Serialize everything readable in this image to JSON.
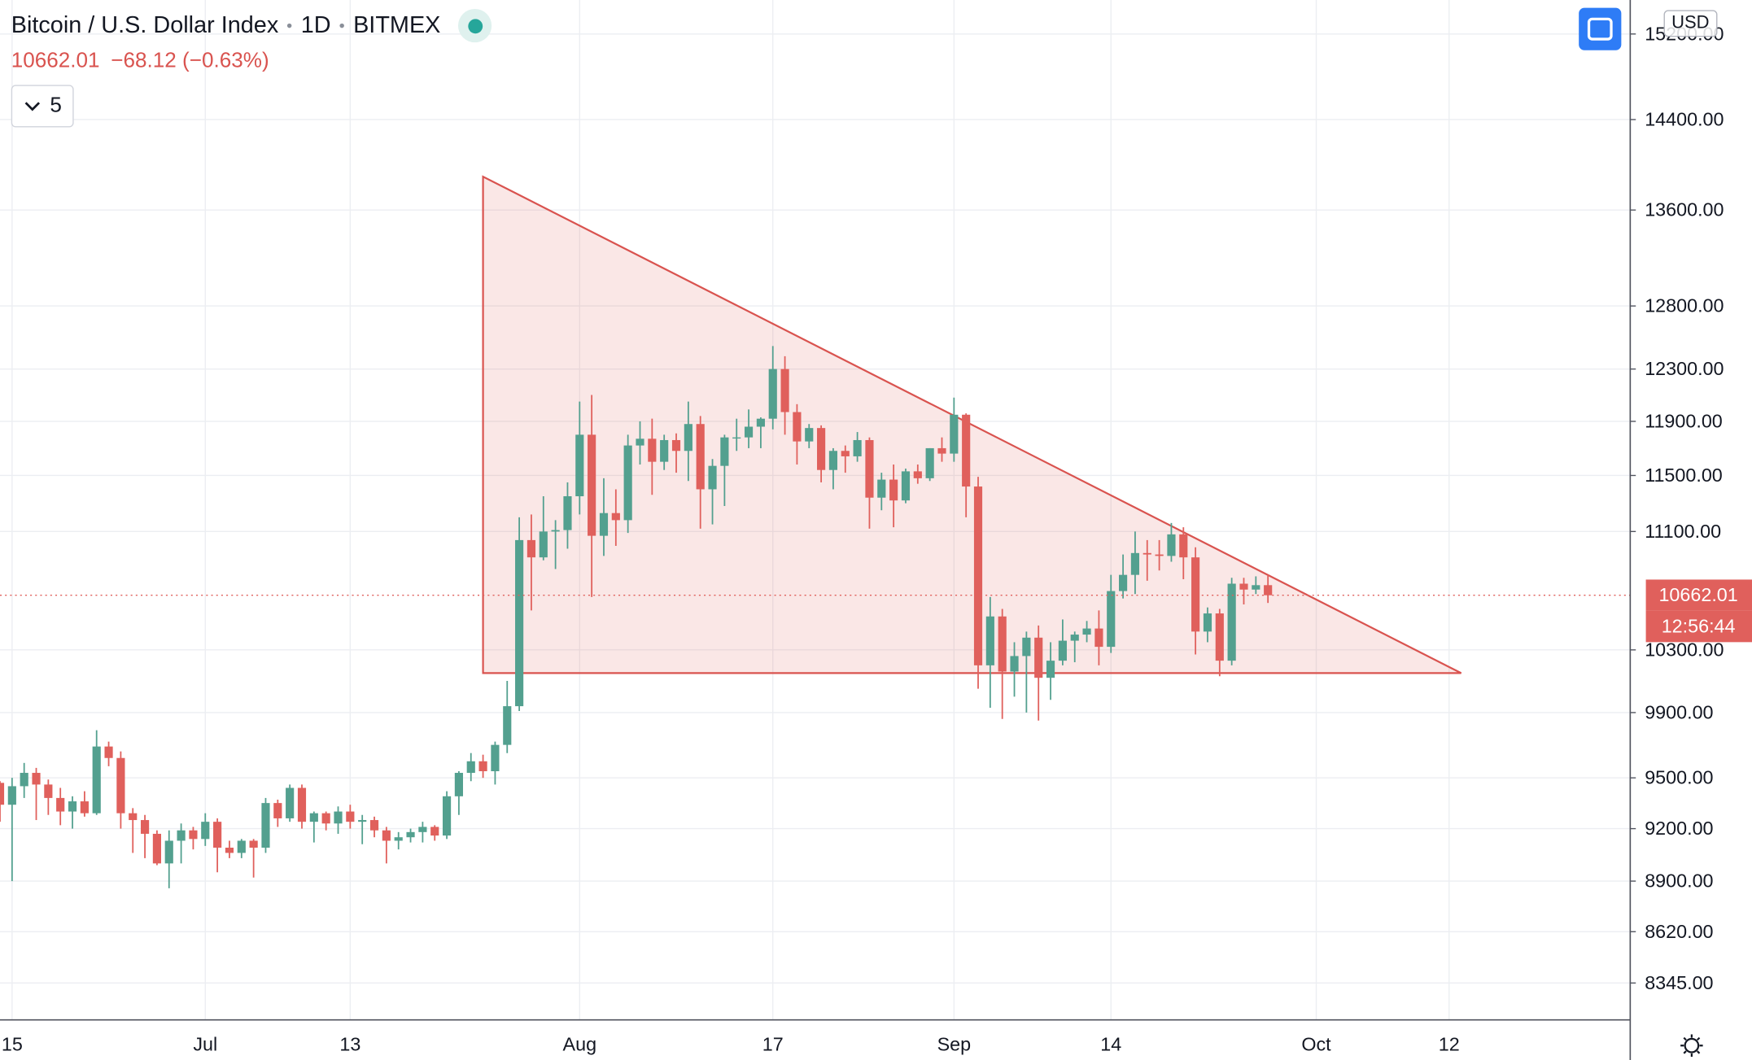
{
  "header": {
    "symbol": "Bitcoin / U.S. Dollar Index",
    "interval": "1D",
    "exchange": "BITMEX",
    "change": "−68.12 (−0.63%)",
    "indicators": "5",
    "currency": "USD"
  },
  "chart_data": {
    "type": "candlestick",
    "up_color": "#53a08f",
    "down_color": "#e0605c",
    "log_scale": true,
    "grid": true,
    "last_price": 10662.01,
    "countdown": "12:56:44",
    "categories": [
      "Jun 14",
      "Jun 15",
      "Jun 16",
      "Jun 17",
      "Jun 18",
      "Jun 19",
      "Jun 20",
      "Jun 21",
      "Jun 22",
      "Jun 23",
      "Jun 24",
      "Jun 25",
      "Jun 26",
      "Jun 27",
      "Jun 28",
      "Jun 29",
      "Jun 30",
      "Jul 1",
      "Jul 2",
      "Jul 3",
      "Jul 4",
      "Jul 5",
      "Jul 6",
      "Jul 7",
      "Jul 8",
      "Jul 9",
      "Jul 10",
      "Jul 11",
      "Jul 12",
      "Jul 13",
      "Jul 14",
      "Jul 15",
      "Jul 16",
      "Jul 17",
      "Jul 18",
      "Jul 19",
      "Jul 20",
      "Jul 21",
      "Jul 22",
      "Jul 23",
      "Jul 24",
      "Jul 25",
      "Jul 26",
      "Jul 27",
      "Jul 28",
      "Jul 29",
      "Jul 30",
      "Jul 31",
      "Aug 1",
      "Aug 2",
      "Aug 3",
      "Aug 4",
      "Aug 5",
      "Aug 6",
      "Aug 7",
      "Aug 8",
      "Aug 9",
      "Aug 10",
      "Aug 11",
      "Aug 12",
      "Aug 13",
      "Aug 14",
      "Aug 15",
      "Aug 16",
      "Aug 17",
      "Aug 18",
      "Aug 19",
      "Aug 20",
      "Aug 21",
      "Aug 22",
      "Aug 23",
      "Aug 24",
      "Aug 25",
      "Aug 26",
      "Aug 27",
      "Aug 28",
      "Aug 29",
      "Aug 30",
      "Aug 31",
      "Sep 1",
      "Sep 2",
      "Sep 3",
      "Sep 4",
      "Sep 5",
      "Sep 6",
      "Sep 7",
      "Sep 8",
      "Sep 9",
      "Sep 10",
      "Sep 11",
      "Sep 12",
      "Sep 13",
      "Sep 14",
      "Sep 15",
      "Sep 16",
      "Sep 17",
      "Sep 18",
      "Sep 19",
      "Sep 20",
      "Sep 21",
      "Sep 22",
      "Sep 23",
      "Sep 24",
      "Sep 25",
      "Sep 26",
      "Sep 27"
    ],
    "open": [
      9470,
      9340,
      9450,
      9530,
      9460,
      9380,
      9300,
      9360,
      9290,
      9690,
      9620,
      9290,
      9250,
      9170,
      9000,
      9130,
      9190,
      9140,
      9240,
      9090,
      9060,
      9130,
      9090,
      9350,
      9260,
      9440,
      9240,
      9290,
      9230,
      9300,
      9240,
      9250,
      9190,
      9130,
      9150,
      9180,
      9210,
      9160,
      9390,
      9530,
      9600,
      9540,
      9700,
      9940,
      11040,
      10920,
      11100,
      11110,
      11350,
      11800,
      11070,
      11230,
      11180,
      11720,
      11770,
      11600,
      11760,
      11680,
      11880,
      11400,
      11570,
      11780,
      11780,
      11860,
      11920,
      12300,
      11970,
      11750,
      11850,
      11540,
      11680,
      11640,
      11760,
      11340,
      11470,
      11320,
      11530,
      11480,
      11700,
      11660,
      11950,
      11420,
      10200,
      10520,
      10160,
      10260,
      10380,
      10120,
      10230,
      10360,
      10400,
      10440,
      10320,
      10690,
      10800,
      10950,
      10940,
      10930,
      11080,
      10920,
      10420,
      10540,
      10230,
      10740,
      10700,
      10730
    ],
    "high": [
      9480,
      9500,
      9590,
      9560,
      9490,
      9440,
      9390,
      9420,
      9790,
      9720,
      9660,
      9320,
      9280,
      9190,
      9190,
      9230,
      9210,
      9290,
      9260,
      9130,
      9140,
      9140,
      9380,
      9370,
      9460,
      9460,
      9300,
      9300,
      9330,
      9340,
      9280,
      9270,
      9210,
      9180,
      9200,
      9240,
      9220,
      9420,
      9540,
      9650,
      9640,
      9720,
      10100,
      11200,
      11220,
      11350,
      11180,
      11450,
      12050,
      12100,
      11480,
      11400,
      11800,
      11900,
      11920,
      11800,
      11810,
      12050,
      11940,
      11620,
      11800,
      11920,
      11990,
      11930,
      12480,
      12400,
      12030,
      11880,
      11870,
      11700,
      11720,
      11820,
      11780,
      11520,
      11580,
      11550,
      11580,
      11700,
      11780,
      12080,
      11960,
      11490,
      10650,
      10570,
      10350,
      10420,
      10460,
      10350,
      10500,
      10420,
      10490,
      10560,
      10800,
      10940,
      11100,
      11040,
      11040,
      11160,
      11130,
      10990,
      10580,
      10570,
      10780,
      10780,
      10790,
      10800
    ],
    "low": [
      9240,
      8900,
      9380,
      9250,
      9280,
      9220,
      9200,
      9270,
      9280,
      9570,
      9200,
      9060,
      9030,
      8990,
      8860,
      9000,
      9080,
      9100,
      8950,
      9030,
      9030,
      8920,
      9060,
      9210,
      9240,
      9200,
      9120,
      9190,
      9170,
      9200,
      9110,
      9150,
      9000,
      9080,
      9120,
      9120,
      9130,
      9140,
      9280,
      9480,
      9500,
      9460,
      9650,
      9910,
      10560,
      10900,
      10840,
      10980,
      11220,
      10650,
      10930,
      11000,
      11090,
      11580,
      11360,
      11540,
      11520,
      11460,
      11120,
      11150,
      11280,
      11680,
      11700,
      11700,
      11840,
      11800,
      11580,
      11700,
      11450,
      11400,
      11520,
      11600,
      11120,
      11250,
      11130,
      11300,
      11440,
      11460,
      11600,
      11600,
      11200,
      10050,
      9930,
      9860,
      10000,
      9900,
      9850,
      9980,
      10200,
      10220,
      10350,
      10200,
      10280,
      10640,
      10670,
      10760,
      10830,
      10890,
      10770,
      10270,
      10350,
      10130,
      10200,
      10600,
      10670,
      10610
    ],
    "close": [
      9340,
      9450,
      9530,
      9460,
      9380,
      9300,
      9360,
      9290,
      9690,
      9620,
      9290,
      9250,
      9170,
      9000,
      9130,
      9190,
      9140,
      9240,
      9090,
      9060,
      9130,
      9090,
      9350,
      9260,
      9440,
      9240,
      9290,
      9230,
      9300,
      9240,
      9250,
      9190,
      9130,
      9150,
      9180,
      9210,
      9160,
      9390,
      9530,
      9600,
      9540,
      9700,
      9940,
      11040,
      10920,
      11100,
      11110,
      11350,
      11800,
      11070,
      11230,
      11180,
      11720,
      11770,
      11600,
      11760,
      11680,
      11880,
      11400,
      11570,
      11780,
      11780,
      11860,
      11920,
      12300,
      11970,
      11750,
      11850,
      11540,
      11680,
      11640,
      11760,
      11340,
      11470,
      11320,
      11530,
      11480,
      11700,
      11660,
      11950,
      11420,
      10200,
      10520,
      10160,
      10260,
      10380,
      10120,
      10230,
      10360,
      10400,
      10440,
      10320,
      10690,
      10800,
      10950,
      10940,
      10930,
      11080,
      10920,
      10420,
      10540,
      10230,
      10740,
      10700,
      10730,
      10662.01
    ],
    "ylim": [
      8153,
      15530
    ],
    "yticks": [
      {
        "value": 8345,
        "label": "8345.00"
      },
      {
        "value": 8620,
        "label": "8620.00"
      },
      {
        "value": 8900,
        "label": "8900.00"
      },
      {
        "value": 9200,
        "label": "9200.00"
      },
      {
        "value": 9500,
        "label": "9500.00"
      },
      {
        "value": 9900,
        "label": "9900.00"
      },
      {
        "value": 10300,
        "label": "10300.00"
      },
      {
        "value": 11100,
        "label": "11100.00"
      },
      {
        "value": 11500,
        "label": "11500.00"
      },
      {
        "value": 11900,
        "label": "11900.00"
      },
      {
        "value": 12300,
        "label": "12300.00"
      },
      {
        "value": 12800,
        "label": "12800.00"
      },
      {
        "value": 13600,
        "label": "13600.00"
      },
      {
        "value": 14400,
        "label": "14400.00"
      },
      {
        "value": 15200,
        "label": "15200.00"
      }
    ],
    "xlim": [
      "Jun 14",
      "Oct 27"
    ],
    "xticks": [
      {
        "value": "Jun 15",
        "label": "15"
      },
      {
        "value": "Jul 1",
        "label": "Jul"
      },
      {
        "value": "Jul 13",
        "label": "13"
      },
      {
        "value": "Aug 1",
        "label": "Aug"
      },
      {
        "value": "Aug 17",
        "label": "17"
      },
      {
        "value": "Sep 1",
        "label": "Sep"
      },
      {
        "value": "Sep 14",
        "label": "14"
      },
      {
        "value": "Oct 1",
        "label": "Oct"
      },
      {
        "value": "Oct 12",
        "label": "12"
      }
    ],
    "triangle": {
      "color": "#d9534f",
      "x": [
        "Jul 24",
        "Jul 24",
        "Oct 13"
      ],
      "y": [
        13890,
        10150,
        10150
      ]
    }
  }
}
